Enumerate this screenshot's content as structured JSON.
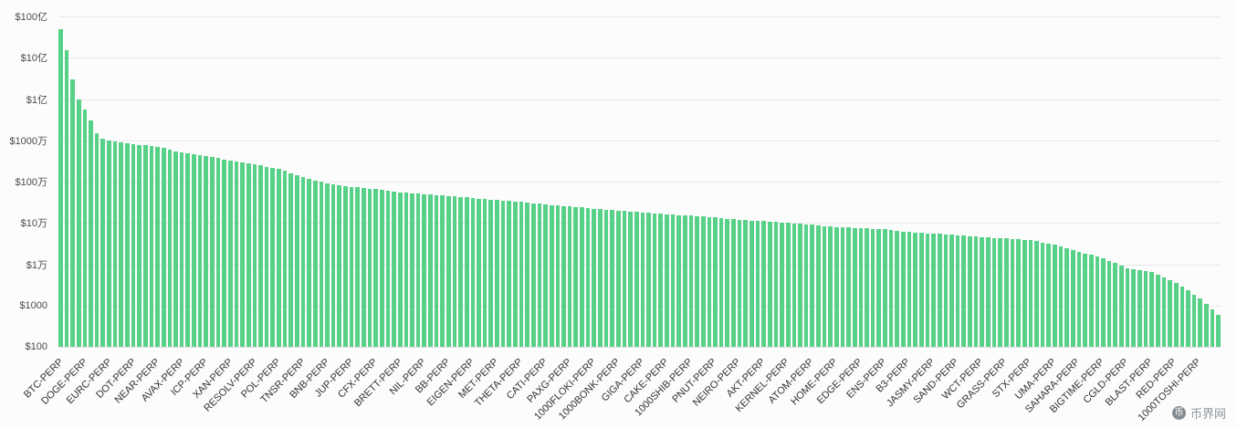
{
  "watermark": {
    "text": "币界网"
  },
  "chart_data": {
    "type": "bar",
    "title": "",
    "xlabel": "",
    "ylabel": "",
    "scale": "log10",
    "grid": true,
    "legend": "none",
    "bar_color": "#57d187",
    "ylim": [
      100,
      10000000000
    ],
    "y_ticks": [
      {
        "label": "$100亿",
        "value": 10000000000
      },
      {
        "label": "$10亿",
        "value": 1000000000
      },
      {
        "label": "$1亿",
        "value": 100000000
      },
      {
        "label": "$1000万",
        "value": 10000000
      },
      {
        "label": "$100万",
        "value": 1000000
      },
      {
        "label": "$10万",
        "value": 100000
      },
      {
        "label": "$1万",
        "value": 10000
      },
      {
        "label": "$1000",
        "value": 1000
      },
      {
        "label": "$100",
        "value": 100
      }
    ],
    "labeled_every": 4,
    "x_labels": [
      "BTC-PERP",
      "DOGE-PERP",
      "EURC-PERP",
      "DOT-PERP",
      "NEAR-PERP",
      "AVAX-PERP",
      "ICP-PERP",
      "XAN-PERP",
      "RESOLV-PERP",
      "POL-PERP",
      "TNSR-PERP",
      "BNB-PERP",
      "JUP-PERP",
      "CFX-PERP",
      "BRETT-PERP",
      "NIL-PERP",
      "BB-PERP",
      "EIGEN-PERP",
      "MET-PERP",
      "THETA-PERP",
      "CATI-PERP",
      "PAXG-PERP",
      "1000FLOKI-PERP",
      "1000BONK-PERP",
      "GIGA-PERP",
      "CAKE-PERP",
      "1000SHIB-PERP",
      "PNUT-PERP",
      "NEIRO-PERP",
      "AKT-PERP",
      "KERNEL-PERP",
      "ATOM-PERP",
      "HOME-PERP",
      "EDGE-PERP",
      "ENS-PERP",
      "B3-PERP",
      "JASMY-PERP",
      "SAND-PERP",
      "WCT-PERP",
      "GRASS-PERP",
      "STX-PERP",
      "UMA-PERP",
      "SAHARA-PERP",
      "BIGTIME-PERP",
      "CGLD-PERP",
      "BLAST-PERP",
      "RED-PERP",
      "1000TOSHI-PERP"
    ],
    "values": [
      5000000000,
      1500000000,
      300000000,
      100000000,
      55000000,
      30000000,
      15000000,
      11000000,
      10000000,
      9460000,
      8940000,
      8460000,
      8000000,
      7740000,
      7480000,
      7240000,
      7000000,
      6440000,
      5920000,
      5440000,
      5000000,
      4790000,
      4580000,
      4390000,
      4200000,
      3920000,
      3670000,
      3430000,
      3200000,
      3040000,
      2880000,
      2740000,
      2600000,
      2440000,
      2280000,
      2140000,
      2000000,
      1800000,
      1610000,
      1450000,
      1300000,
      1190000,
      1080000,
      987000,
      900000,
      860000,
      821000,
      785000,
      750000,
      724000,
      698000,
      674000,
      650000,
      623000,
      598000,
      573000,
      550000,
      537000,
      524000,
      512000,
      500000,
      487000,
      474000,
      462000,
      450000,
      437000,
      424000,
      412000,
      400000,
      390000,
      379000,
      370000,
      360000,
      350000,
      339000,
      330000,
      320000,
      310000,
      299000,
      290000,
      280000,
      272000,
      265000,
      257000,
      250000,
      242000,
      235000,
      227000,
      220000,
      215000,
      210000,
      205000,
      200000,
      195000,
      190000,
      185000,
      180000,
      175000,
      170000,
      165000,
      160000,
      157000,
      155000,
      152000,
      150000,
      146000,
      142000,
      139000,
      135000,
      131000,
      127000,
      124000,
      120000,
      117000,
      115000,
      112000,
      110000,
      107000,
      105000,
      102000,
      100000,
      97400,
      94900,
      92400,
      90000,
      87400,
      84800,
      82400,
      80000,
      78700,
      77500,
      76200,
      75000,
      73700,
      72500,
      71200,
      70000,
      67400,
      64800,
      62400,
      60000,
      58700,
      57400,
      56200,
      55000,
      53700,
      52400,
      51200,
      50000,
      48700,
      47400,
      46200,
      45000,
      44200,
      43500,
      42700,
      42000,
      41000,
      40000,
      39000,
      38000,
      35800,
      33800,
      31800,
      30000,
      27100,
      24500,
      22100,
      20000,
      18300,
      16700,
      15300,
      14000,
      12200,
      10600,
      9200,
      8000,
      7600,
      7210,
      6850,
      6500,
      5570,
      4770,
      4090,
      3500,
      2830,
      2290,
      1850,
      1500,
      1110,
      814,
      600
    ]
  }
}
